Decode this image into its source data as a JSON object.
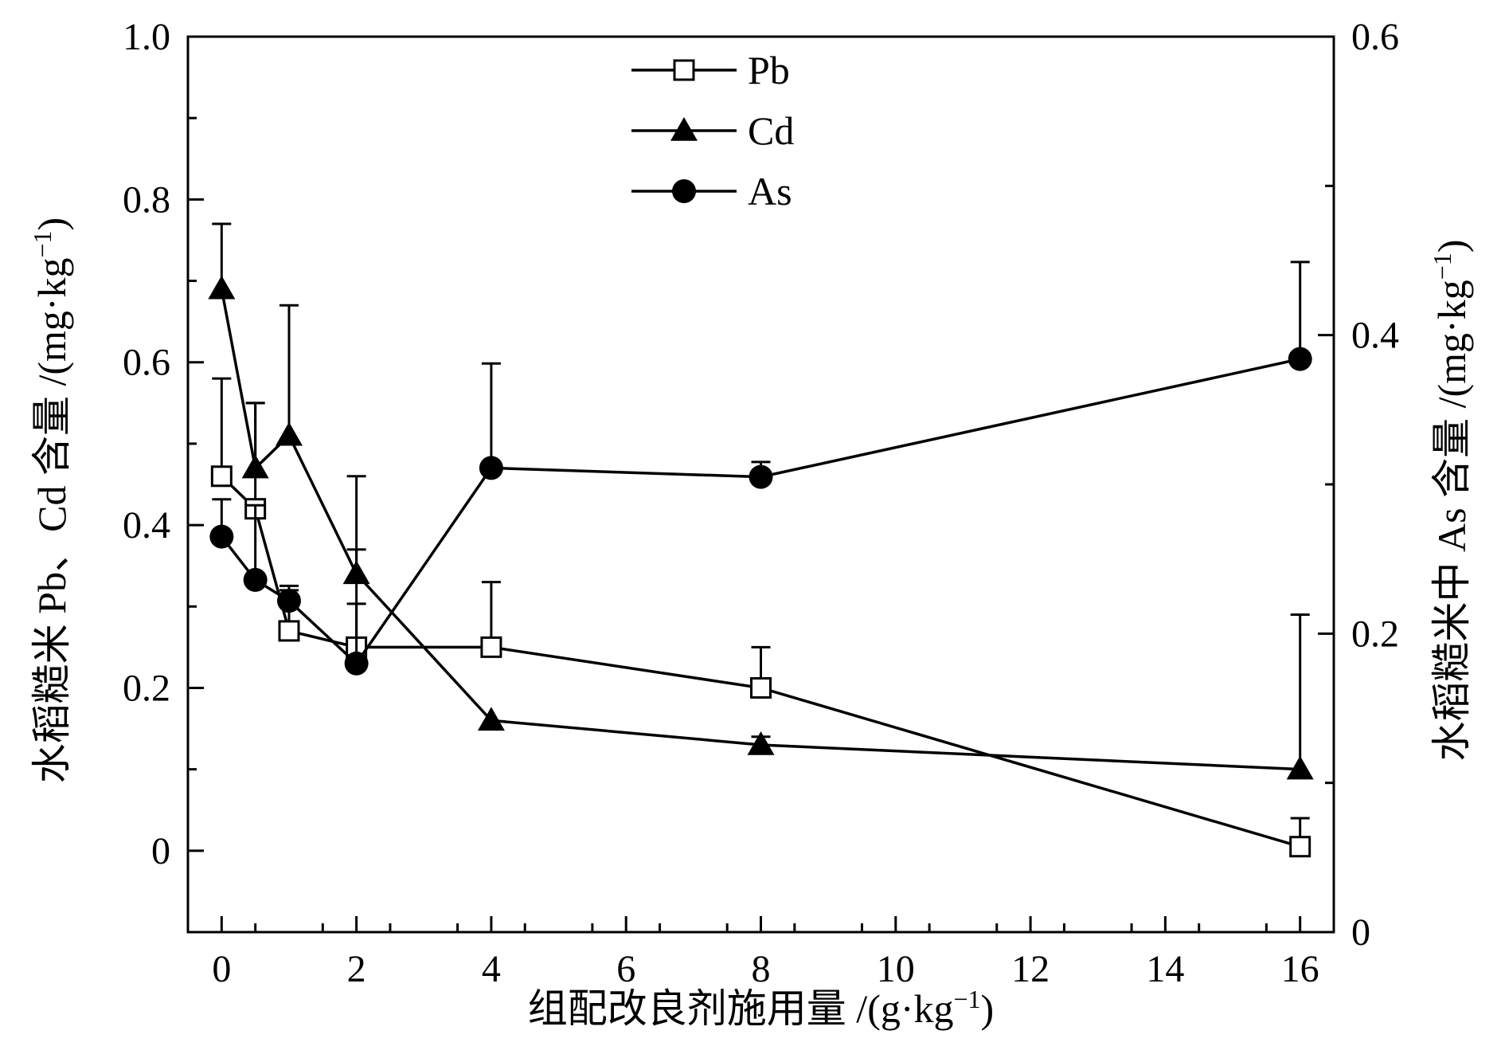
{
  "chart_data": {
    "type": "line",
    "xlabel": "组配改良剂施用量 /(g·kg",
    "xlabel_sup": "−1",
    "xlabel_suffix": ")",
    "ylabel_left": "水稻糙米 Pb、Cd 含量 /(mg·kg",
    "ylabel_left_sup": "−1",
    "ylabel_left_suffix": ")",
    "ylabel_right": "水稻糙米中 As 含量 /(mg·kg",
    "ylabel_right_sup": "−1",
    "ylabel_right_suffix": ")",
    "x_axis": {
      "range": [
        -0.5,
        16.5
      ],
      "major_ticks": [
        0,
        2,
        4,
        6,
        8,
        10,
        12,
        14,
        16
      ],
      "tick_labels": [
        "0",
        "2",
        "4",
        "6",
        "8",
        "10",
        "12",
        "14",
        "16"
      ],
      "display_positions": [
        0,
        1,
        2,
        3,
        4,
        5,
        6,
        7,
        8
      ],
      "note_values": [
        0,
        0.5,
        1,
        2,
        4,
        8,
        16
      ]
    },
    "y_left": {
      "range": [
        -0.1,
        1.0
      ],
      "major_ticks": [
        0,
        0.2,
        0.4,
        0.6,
        0.8,
        1.0
      ],
      "tick_labels": [
        "0",
        "0.2",
        "0.4",
        "0.6",
        "0.8",
        "1.0"
      ]
    },
    "y_right": {
      "range": [
        0,
        0.6
      ],
      "major_ticks": [
        0,
        0.2,
        0.4,
        0.6
      ],
      "tick_labels": [
        "0",
        "0.2",
        "0.4",
        "0.6"
      ]
    },
    "legend": {
      "position": "top-center",
      "entries": [
        "Pb",
        "Cd",
        "As"
      ]
    },
    "series": [
      {
        "name": "Pb",
        "axis": "left",
        "marker": "open-square",
        "x": [
          0,
          0.5,
          1,
          2,
          4,
          8,
          16
        ],
        "y": [
          0.46,
          0.42,
          0.27,
          0.25,
          0.25,
          0.2,
          0.005
        ],
        "err": [
          0.12,
          0.13,
          0.05,
          0.12,
          0.08,
          0.05,
          0.035
        ]
      },
      {
        "name": "Cd",
        "axis": "left",
        "marker": "filled-triangle",
        "x": [
          0,
          0.5,
          1,
          2,
          4,
          8,
          16
        ],
        "y": [
          0.69,
          0.47,
          0.51,
          0.34,
          0.16,
          0.13,
          0.1
        ],
        "err": [
          0.08,
          0.08,
          0.16,
          0.12,
          0.0,
          0.01,
          0.19
        ]
      },
      {
        "name": "As",
        "axis": "right",
        "marker": "filled-circle",
        "x": [
          0,
          0.5,
          1,
          2,
          4,
          8,
          16
        ],
        "y": [
          0.265,
          0.236,
          0.222,
          0.18,
          0.311,
          0.305,
          0.384
        ],
        "err": [
          0.025,
          0.05,
          0.01,
          0.04,
          0.07,
          0.01,
          0.065
        ]
      }
    ]
  }
}
